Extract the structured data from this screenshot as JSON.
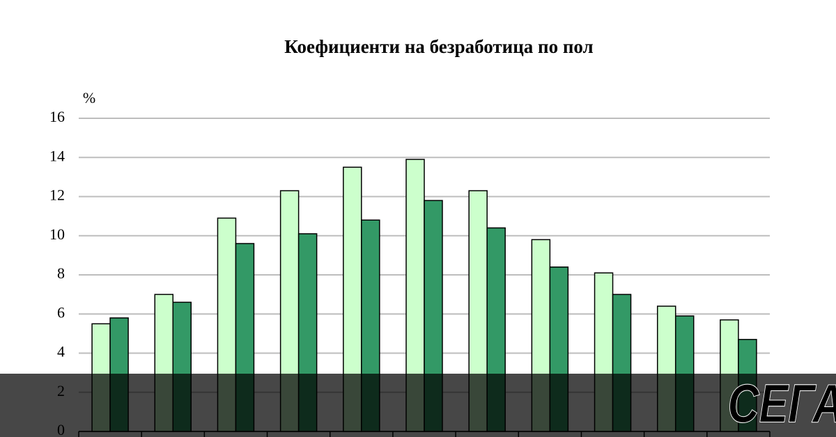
{
  "chart_data": {
    "type": "bar",
    "title": "Коефициенти на безработица по пол",
    "y_label": "%",
    "categories": [
      null,
      null,
      null,
      null,
      null,
      null,
      null,
      null,
      null,
      null,
      null
    ],
    "series": [
      {
        "color": "#ccffcc",
        "values": [
          5.5,
          7.0,
          10.9,
          12.3,
          13.5,
          13.9,
          12.3,
          9.8,
          8.1,
          6.4,
          5.7
        ]
      },
      {
        "color": "#339966",
        "values": [
          5.8,
          6.6,
          9.6,
          10.1,
          10.8,
          11.8,
          10.4,
          8.4,
          7.0,
          5.9,
          4.7
        ]
      }
    ],
    "ylim": [
      0,
      16
    ],
    "yticks": [
      0,
      2,
      4,
      6,
      8,
      10,
      12,
      14,
      16
    ],
    "grid": true
  },
  "logo": "СЕГА"
}
